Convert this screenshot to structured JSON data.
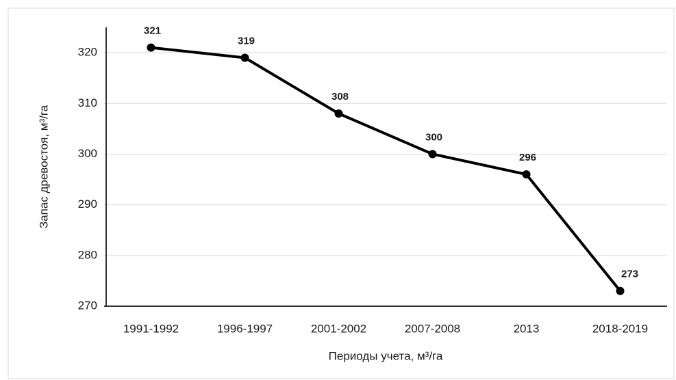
{
  "chart_data": {
    "type": "line",
    "y_label": "Запас древостоя, м³/га",
    "x_label": "Периоды учета, м³/га",
    "categories": [
      "1991-1992",
      "1996-1997",
      "2001-2002",
      "2007-2008",
      "2013",
      "2018-2019"
    ],
    "series": [
      {
        "name": "Запас",
        "color": "#000000",
        "values": [
          321,
          319,
          308,
          300,
          296,
          273
        ]
      }
    ],
    "ylim": [
      270,
      325
    ],
    "yticks": [
      270,
      280,
      290,
      300,
      310,
      320
    ],
    "grid": true
  }
}
